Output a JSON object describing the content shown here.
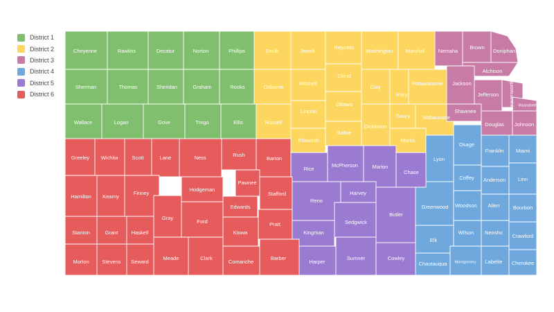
{
  "legend": [
    {
      "label": "District 1",
      "color": "#7fbf6e"
    },
    {
      "label": "District 2",
      "color": "#fcd65f"
    },
    {
      "label": "District 3",
      "color": "#c87ba4"
    },
    {
      "label": "District 4",
      "color": "#6ea8dd"
    },
    {
      "label": "District 5",
      "color": "#9a7bd1"
    },
    {
      "label": "District 6",
      "color": "#e65b5b"
    }
  ],
  "counties": [
    {
      "name": "Cheyenne",
      "district": 1
    },
    {
      "name": "Rawlins",
      "district": 1
    },
    {
      "name": "Decatur",
      "district": 1
    },
    {
      "name": "Norton",
      "district": 1
    },
    {
      "name": "Phillips",
      "district": 1
    },
    {
      "name": "Sherman",
      "district": 1
    },
    {
      "name": "Thomas",
      "district": 1
    },
    {
      "name": "Sheridan",
      "district": 1
    },
    {
      "name": "Graham",
      "district": 1
    },
    {
      "name": "Rooks",
      "district": 1
    },
    {
      "name": "Wallace",
      "district": 1
    },
    {
      "name": "Logan",
      "district": 1
    },
    {
      "name": "Gove",
      "district": 1
    },
    {
      "name": "Trego",
      "district": 1
    },
    {
      "name": "Ellis",
      "district": 1
    },
    {
      "name": "Smith",
      "district": 2
    },
    {
      "name": "Jewell",
      "district": 2
    },
    {
      "name": "Republic",
      "district": 2
    },
    {
      "name": "Washington",
      "district": 2
    },
    {
      "name": "Marshall",
      "district": 2
    },
    {
      "name": "Osborne",
      "district": 2
    },
    {
      "name": "Mitchell",
      "district": 2
    },
    {
      "name": "Cloud",
      "district": 2
    },
    {
      "name": "Clay",
      "district": 2
    },
    {
      "name": "Riley",
      "district": 2
    },
    {
      "name": "Pottawatomie",
      "district": 2
    },
    {
      "name": "Russell",
      "district": 2
    },
    {
      "name": "Lincoln",
      "district": 2
    },
    {
      "name": "Ottawa",
      "district": 2
    },
    {
      "name": "Saline",
      "district": 2
    },
    {
      "name": "Dickinson",
      "district": 2
    },
    {
      "name": "Geary",
      "district": 2
    },
    {
      "name": "Wabaunsee",
      "district": 2
    },
    {
      "name": "Ellsworth",
      "district": 2
    },
    {
      "name": "Morris",
      "district": 2
    },
    {
      "name": "Nemaha",
      "district": 3
    },
    {
      "name": "Brown",
      "district": 3
    },
    {
      "name": "Doniphan",
      "district": 3
    },
    {
      "name": "Atchison",
      "district": 3
    },
    {
      "name": "Jackson",
      "district": 3
    },
    {
      "name": "Jefferson",
      "district": 3
    },
    {
      "name": "Leavenworth",
      "district": 3
    },
    {
      "name": "Wyandotte",
      "district": 3
    },
    {
      "name": "Shawnee",
      "district": 3
    },
    {
      "name": "Douglas",
      "district": 3
    },
    {
      "name": "Johnson",
      "district": 3
    },
    {
      "name": "Osage",
      "district": 4
    },
    {
      "name": "Lyon",
      "district": 4
    },
    {
      "name": "Franklin",
      "district": 4
    },
    {
      "name": "Miami",
      "district": 4
    },
    {
      "name": "Coffey",
      "district": 4
    },
    {
      "name": "Anderson",
      "district": 4
    },
    {
      "name": "Linn",
      "district": 4
    },
    {
      "name": "Greenwood",
      "district": 4
    },
    {
      "name": "Woodson",
      "district": 4
    },
    {
      "name": "Allen",
      "district": 4
    },
    {
      "name": "Bourbon",
      "district": 4
    },
    {
      "name": "Wilson",
      "district": 4
    },
    {
      "name": "Neosho",
      "district": 4
    },
    {
      "name": "Crawford",
      "district": 4
    },
    {
      "name": "Elk",
      "district": 4
    },
    {
      "name": "Chautauqua",
      "district": 4
    },
    {
      "name": "Montgomery",
      "district": 4
    },
    {
      "name": "Labette",
      "district": 4
    },
    {
      "name": "Cherokee",
      "district": 4
    },
    {
      "name": "Rice",
      "district": 5
    },
    {
      "name": "McPherson",
      "district": 5
    },
    {
      "name": "Marion",
      "district": 5
    },
    {
      "name": "Chase",
      "district": 5
    },
    {
      "name": "Reno",
      "district": 5
    },
    {
      "name": "Harvey",
      "district": 5
    },
    {
      "name": "Butler",
      "district": 5
    },
    {
      "name": "Sedgwick",
      "district": 5
    },
    {
      "name": "Kingman",
      "district": 5
    },
    {
      "name": "Harper",
      "district": 5
    },
    {
      "name": "Sumner",
      "district": 5
    },
    {
      "name": "Cowley",
      "district": 5
    },
    {
      "name": "Greeley",
      "district": 6
    },
    {
      "name": "Wichita",
      "district": 6
    },
    {
      "name": "Scott",
      "district": 6
    },
    {
      "name": "Lane",
      "district": 6
    },
    {
      "name": "Ness",
      "district": 6
    },
    {
      "name": "Rush",
      "district": 6
    },
    {
      "name": "Barton",
      "district": 6
    },
    {
      "name": "Pawnee",
      "district": 6
    },
    {
      "name": "Hamilton",
      "district": 6
    },
    {
      "name": "Kearny",
      "district": 6
    },
    {
      "name": "Finney",
      "district": 6
    },
    {
      "name": "Hodgeman",
      "district": 6
    },
    {
      "name": "Stafford",
      "district": 6
    },
    {
      "name": "Edwards",
      "district": 6
    },
    {
      "name": "Gray",
      "district": 6
    },
    {
      "name": "Ford",
      "district": 6
    },
    {
      "name": "Stanton",
      "district": 6
    },
    {
      "name": "Grant",
      "district": 6
    },
    {
      "name": "Haskell",
      "district": 6
    },
    {
      "name": "Kiowa",
      "district": 6
    },
    {
      "name": "Pratt",
      "district": 6
    },
    {
      "name": "Morton",
      "district": 6
    },
    {
      "name": "Stevens",
      "district": 6
    },
    {
      "name": "Seward",
      "district": 6
    },
    {
      "name": "Meade",
      "district": 6
    },
    {
      "name": "Clark",
      "district": 6
    },
    {
      "name": "Comanche",
      "district": 6
    },
    {
      "name": "Barber",
      "district": 6
    }
  ]
}
